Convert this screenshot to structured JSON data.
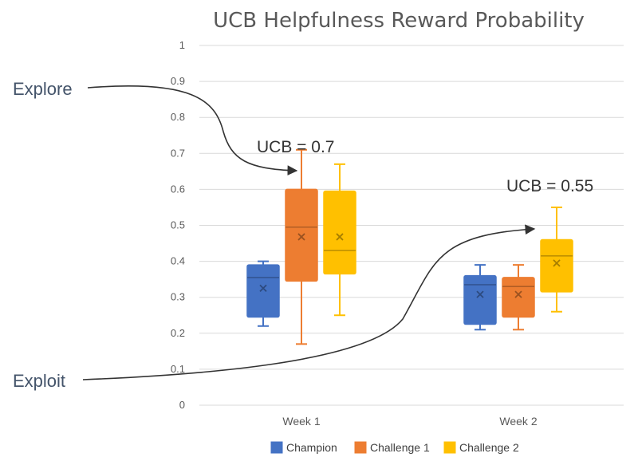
{
  "chart_data": {
    "type": "box",
    "title": "UCB Helpfulness Reward Probability",
    "xlabel": "",
    "ylabel": "",
    "ylim": [
      0,
      1
    ],
    "yticks": [
      0,
      0.1,
      0.2,
      0.3,
      0.4,
      0.5,
      0.6,
      0.7,
      0.8,
      0.9,
      1
    ],
    "ytick_labels": [
      "0",
      "0.1",
      "0.2",
      "0.3",
      "0.4",
      "0.5",
      "0.6",
      "0.7",
      "0.8",
      "0.9",
      "1"
    ],
    "categories": [
      "Week 1",
      "Week 2"
    ],
    "grid": true,
    "legend_position": "bottom",
    "series": [
      {
        "name": "Champion",
        "color": "#4472c4",
        "boxes": [
          {
            "min": 0.22,
            "q1": 0.245,
            "median": 0.355,
            "q3": 0.39,
            "max": 0.4,
            "mean": 0.325
          },
          {
            "min": 0.21,
            "q1": 0.225,
            "median": 0.335,
            "q3": 0.36,
            "max": 0.39,
            "mean": 0.308
          }
        ]
      },
      {
        "name": "Challenge 1",
        "color": "#ed7d31",
        "boxes": [
          {
            "min": 0.17,
            "q1": 0.345,
            "median": 0.495,
            "q3": 0.6,
            "max": 0.71,
            "mean": 0.468
          },
          {
            "min": 0.21,
            "q1": 0.245,
            "median": 0.33,
            "q3": 0.355,
            "max": 0.39,
            "mean": 0.308
          }
        ]
      },
      {
        "name": "Challenge 2",
        "color": "#ffc000",
        "boxes": [
          {
            "min": 0.25,
            "q1": 0.365,
            "median": 0.43,
            "q3": 0.595,
            "max": 0.67,
            "mean": 0.468
          },
          {
            "min": 0.26,
            "q1": 0.315,
            "median": 0.415,
            "q3": 0.46,
            "max": 0.55,
            "mean": 0.395
          }
        ]
      }
    ],
    "annotations": {
      "explore_label": "Explore",
      "exploit_label": "Exploit",
      "ucb_week1": "UCB = 0.7",
      "ucb_week2": "UCB = 0.55"
    }
  }
}
